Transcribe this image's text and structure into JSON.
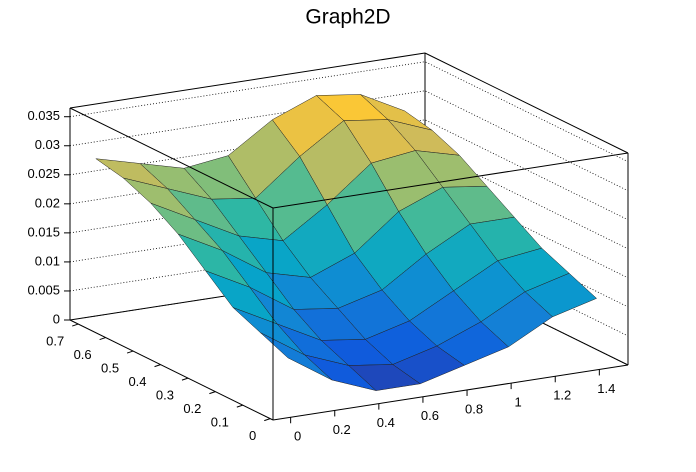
{
  "chart_data": {
    "type": "surface3d",
    "title": "Graph2D",
    "x": [
      0,
      0.2,
      0.4,
      0.6,
      0.8,
      1,
      1.2,
      1.4
    ],
    "y": [
      0,
      0.1,
      0.2,
      0.3,
      0.4,
      0.5,
      0.6,
      0.7
    ],
    "z": [
      [
        0.01,
        0.005,
        0.002,
        0.002,
        0.004,
        0.006,
        0.01,
        0.012
      ],
      [
        0.012,
        0.007,
        0.004,
        0.003,
        0.005,
        0.008,
        0.012,
        0.014
      ],
      [
        0.014,
        0.01,
        0.006,
        0.005,
        0.007,
        0.011,
        0.015,
        0.016
      ],
      [
        0.018,
        0.014,
        0.009,
        0.008,
        0.01,
        0.015,
        0.019,
        0.019
      ],
      [
        0.022,
        0.018,
        0.013,
        0.011,
        0.014,
        0.02,
        0.023,
        0.022
      ],
      [
        0.025,
        0.021,
        0.017,
        0.015,
        0.02,
        0.026,
        0.027,
        0.025
      ],
      [
        0.027,
        0.024,
        0.021,
        0.02,
        0.026,
        0.031,
        0.03,
        0.027
      ],
      [
        0.028,
        0.026,
        0.024,
        0.025,
        0.03,
        0.033,
        0.032,
        0.028
      ]
    ],
    "palette": [
      "#352a87",
      "#0f5cdd",
      "#1481d6",
      "#06a4ca",
      "#2eb7a4",
      "#87bf77",
      "#d1bb59",
      "#fec832",
      "#f9fb0e"
    ],
    "xlim": [
      -0.08,
      1.53
    ],
    "ylim": [
      -0.01,
      0.73
    ],
    "zlim": [
      0,
      0.0365
    ],
    "xticks": [
      0,
      0.2,
      0.4,
      0.6,
      0.8,
      1,
      1.2,
      1.4
    ],
    "yticks": [
      0,
      0.1,
      0.2,
      0.3,
      0.4,
      0.5,
      0.6,
      0.7
    ],
    "zticks": [
      0,
      0.005,
      0.01,
      0.015,
      0.02,
      0.025,
      0.03,
      0.035
    ],
    "grid": true
  }
}
